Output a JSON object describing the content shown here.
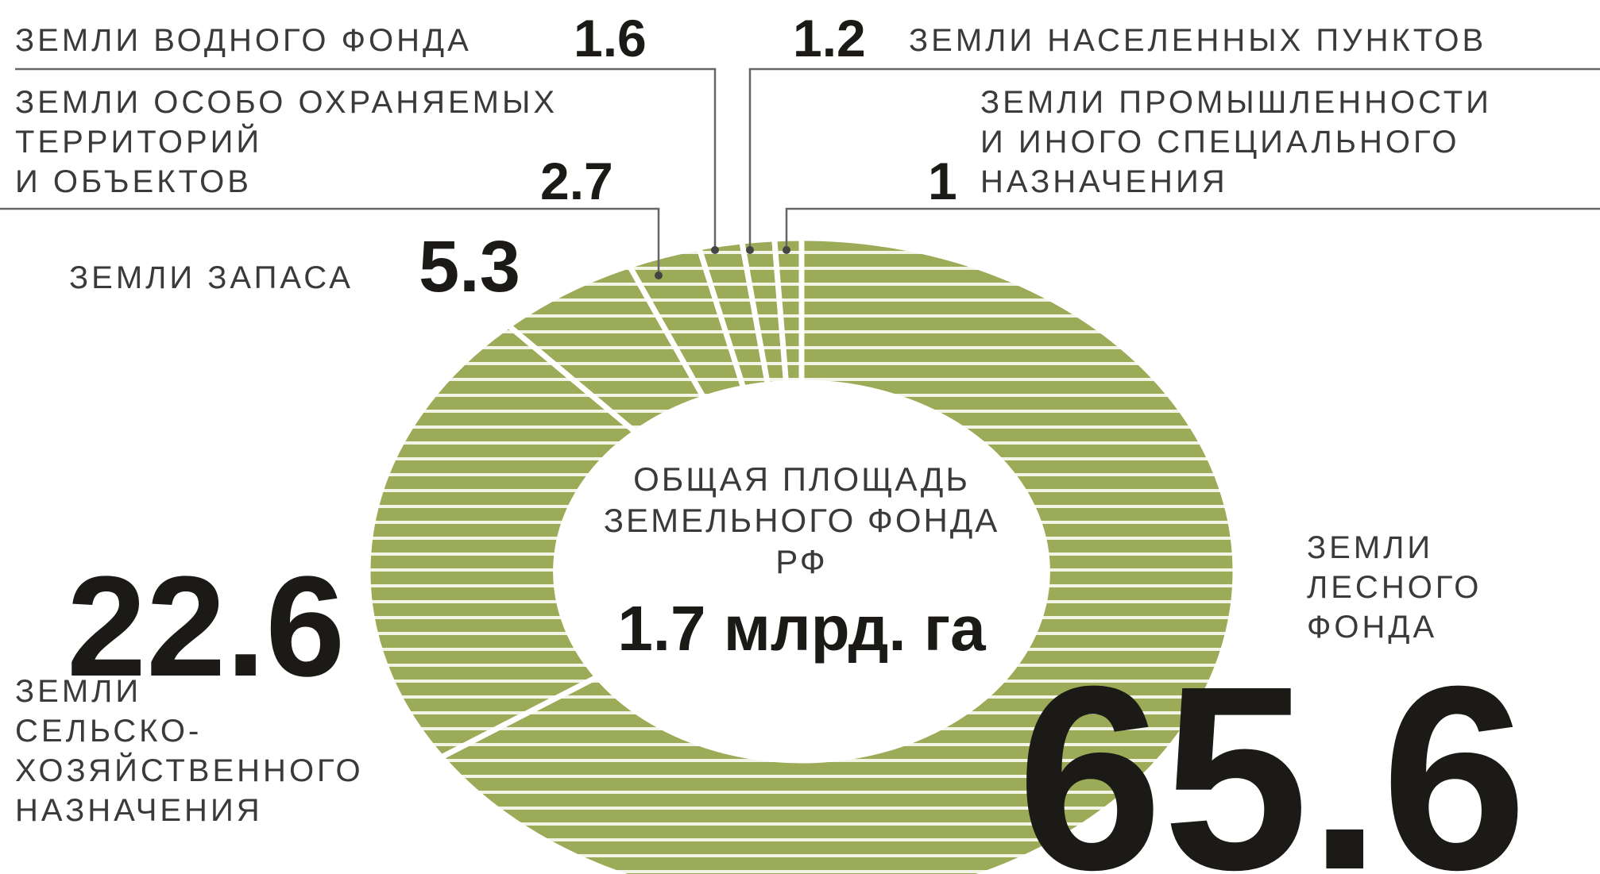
{
  "chart_data": {
    "type": "donut",
    "title": "ОБЩАЯ ПЛОЩАДЬ\nЗЕМЕЛЬНОГО ФОНДА\nРФ",
    "subtitle": "1.7 млрд. га",
    "categories": [
      "ЗЕМЛИ\nЛЕСНОГО\nФОНДА",
      "ЗЕМЛИ\nСЕЛЬСКО-\nХОЗЯЙСТВЕННОГО\nНАЗНАЧЕНИЯ",
      "ЗЕМЛИ ЗАПАСА",
      "ЗЕМЛИ ОСОБО ОХРАНЯЕМЫХ\nТЕРРИТОРИЙ\nИ ОБЪЕКТОВ",
      "ЗЕМЛИ ВОДНОГО ФОНДА",
      "ЗЕМЛИ НАСЕЛЕННЫХ ПУНКТОВ",
      "ЗЕМЛИ ПРОМЫШЛЕННОСТИ\nИ ИНОГО СПЕЦИАЛЬНОГО\nНАЗНАЧЕНИЯ"
    ],
    "values": [
      65.6,
      22.6,
      5.3,
      2.7,
      1.6,
      1.2,
      1
    ],
    "color": "#9cab57"
  }
}
